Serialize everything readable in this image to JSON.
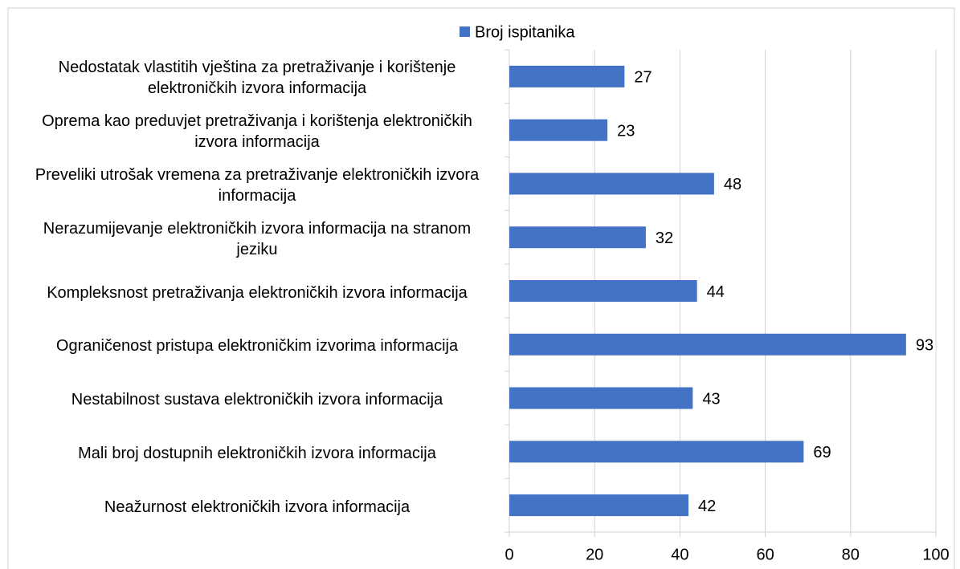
{
  "chart_data": {
    "type": "bar",
    "orientation": "horizontal",
    "categories": [
      "Nedostatak vlastitih vještina za pretraživanje i korištenje elektroničkih izvora informacija",
      "Oprema kao preduvjet pretraživanja i korištenja elektroničkih izvora informacija",
      "Preveliki utrošak vremena za pretraživanje elektroničkih izvora informacija",
      "Nerazumijevanje elektroničkih izvora informacija na stranom jeziku",
      "Kompleksnost pretraživanja elektroničkih izvora informacija",
      "Ograničenost pristupa elektroničkim izvorima informacija",
      "Nestabilnost sustava elektroničkih izvora informacija",
      "Mali broj dostupnih elektroničkih izvora informacija",
      "Neažurnost elektroničkih izvora informacija"
    ],
    "series": [
      {
        "name": "Broj ispitanika",
        "color": "#4472c4",
        "values": [
          27,
          23,
          48,
          32,
          44,
          93,
          43,
          69,
          42
        ]
      }
    ],
    "xlim": [
      0,
      100
    ],
    "xticks": [
      0,
      20,
      40,
      60,
      80,
      100
    ],
    "grid": true,
    "legend": "top"
  }
}
